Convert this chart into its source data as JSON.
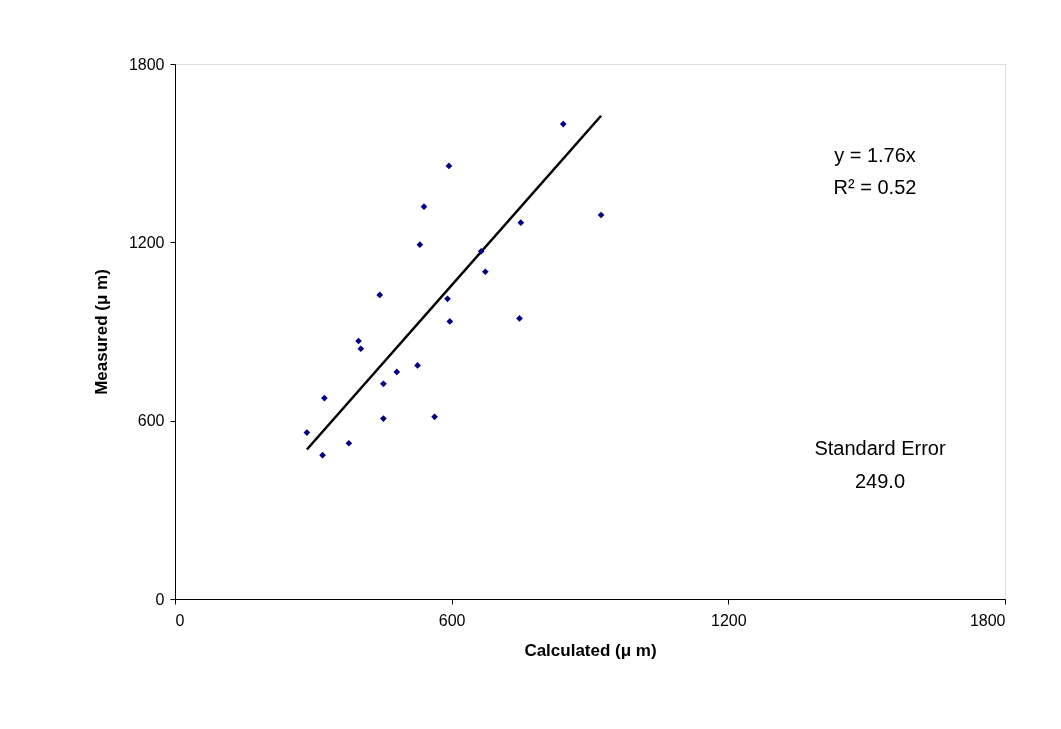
{
  "chart_data": {
    "type": "scatter",
    "xlabel": "Calculated (μ m)",
    "ylabel": "Measured (μ m)",
    "xlim": [
      0,
      1800
    ],
    "ylim": [
      0,
      1800
    ],
    "xticks": [
      0,
      600,
      1200,
      1800
    ],
    "yticks": [
      0,
      600,
      1200,
      1800
    ],
    "grid": false,
    "legend": false,
    "series": [
      {
        "marker": "diamond",
        "color": "#000080",
        "x": [
          286,
          320,
          324,
          377,
          398,
          403,
          444,
          452,
          452,
          481,
          526,
          531,
          540,
          563,
          594,
          591,
          596,
          664,
          673,
          747,
          750,
          842,
          924
        ],
        "values": [
          560,
          484,
          676,
          524,
          868,
          842,
          1023,
          724,
          607,
          764,
          786,
          1192,
          1320,
          613,
          1457,
          1010,
          934,
          1170,
          1101,
          944,
          1266,
          1598,
          1292
        ]
      },
      {
        "type": "line",
        "marker": "none",
        "color": "#000000",
        "x": [
          286,
          924
        ],
        "values": [
          503,
          1626
        ]
      }
    ],
    "annotations": [
      "y = 1.76x",
      "R² = 0.52",
      "Standard Error",
      "249.0"
    ]
  }
}
